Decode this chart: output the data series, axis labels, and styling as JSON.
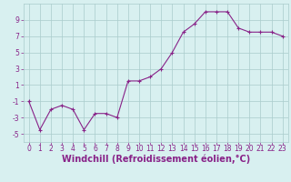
{
  "x": [
    0,
    1,
    2,
    3,
    4,
    5,
    6,
    7,
    8,
    9,
    10,
    11,
    12,
    13,
    14,
    15,
    16,
    17,
    18,
    19,
    20,
    21,
    22,
    23
  ],
  "y": [
    -1,
    -4.5,
    -2,
    -1.5,
    -2,
    -4.5,
    -2.5,
    -2.5,
    -3,
    1.5,
    1.5,
    2,
    3,
    5,
    7.5,
    8.5,
    10,
    10,
    10,
    8,
    7.5,
    7.5,
    7.5,
    7
  ],
  "line_color": "#882288",
  "marker_color": "#882288",
  "bg_color": "#d8f0f0",
  "grid_color": "#aacccc",
  "xlabel": "Windchill (Refroidissement éolien,°C)",
  "xlabel_color": "#882288",
  "xlim": [
    -0.5,
    23.5
  ],
  "ylim": [
    -6,
    11
  ],
  "yticks": [
    -5,
    -3,
    -1,
    1,
    3,
    5,
    7,
    9
  ],
  "xticks": [
    0,
    1,
    2,
    3,
    4,
    5,
    6,
    7,
    8,
    9,
    10,
    11,
    12,
    13,
    14,
    15,
    16,
    17,
    18,
    19,
    20,
    21,
    22,
    23
  ],
  "tick_fontsize": 5.5,
  "xlabel_fontsize": 7,
  "marker_size": 3,
  "line_width": 0.8
}
